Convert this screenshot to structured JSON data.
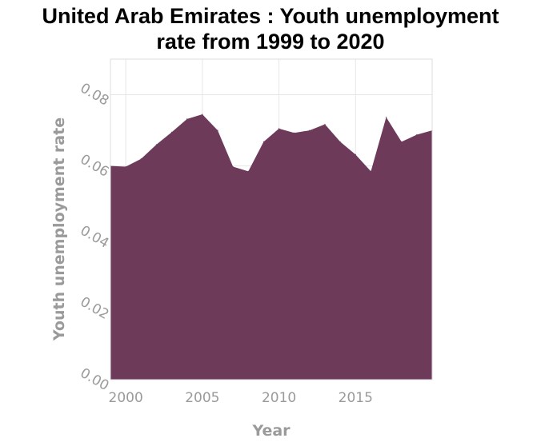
{
  "chart_data": {
    "type": "area",
    "title_line1": "United Arab Emirates : Youth unemployment",
    "title_line2": "rate from 1999 to 2020",
    "xlabel": "Year",
    "ylabel": "Youth unemployment rate",
    "xlim": [
      1999,
      2020
    ],
    "ylim": [
      0,
      0.09
    ],
    "xticks": [
      2000,
      2005,
      2010,
      2015
    ],
    "xtick_labels": [
      "2000",
      "2005",
      "2010",
      "2015"
    ],
    "yticks": [
      0,
      0.02,
      0.04,
      0.06,
      0.08
    ],
    "ytick_labels": [
      "0.00",
      "0.02",
      "0.04",
      "0.06",
      "0.08"
    ],
    "grid": true,
    "series": [
      {
        "color": "#6d3a5a",
        "x": [
          1999,
          2000,
          2001,
          2002,
          2003,
          2004,
          2005,
          2006,
          2007,
          2008,
          2009,
          2010,
          2011,
          2012,
          2013,
          2014,
          2015,
          2016,
          2017,
          2018,
          2019,
          2020
        ],
        "y": [
          0.06,
          0.0598,
          0.062,
          0.066,
          0.0695,
          0.0732,
          0.0745,
          0.07,
          0.0598,
          0.0585,
          0.0668,
          0.0705,
          0.0693,
          0.07,
          0.0717,
          0.0668,
          0.0632,
          0.0585,
          0.0737,
          0.0668,
          0.0688,
          0.07
        ]
      }
    ]
  }
}
